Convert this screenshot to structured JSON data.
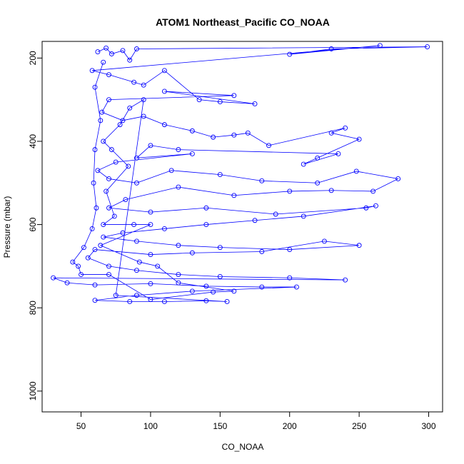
{
  "chart_data": {
    "type": "scatter",
    "title": "ATOM1 Northeast_Pacific CO_NOAA",
    "xlabel": "CO_NOAA",
    "ylabel": "Pressure (mbar)",
    "xlim": [
      22,
      310
    ],
    "ylim": [
      1050,
      160
    ],
    "y_reversed": true,
    "x_ticks": [
      50,
      100,
      150,
      200,
      250,
      300
    ],
    "y_ticks": [
      200,
      400,
      600,
      800,
      1000
    ],
    "grid": false,
    "legend": "none",
    "point_style": "open-circle-connected-by-lines",
    "series_color": "#0000ff",
    "points": [
      [
        62,
        185
      ],
      [
        68,
        176
      ],
      [
        72,
        190
      ],
      [
        80,
        182
      ],
      [
        85,
        205
      ],
      [
        90,
        178
      ],
      [
        299,
        173
      ],
      [
        230,
        178
      ],
      [
        200,
        191
      ],
      [
        265,
        170
      ],
      [
        58,
        230
      ],
      [
        70,
        240
      ],
      [
        88,
        258
      ],
      [
        95,
        265
      ],
      [
        110,
        230
      ],
      [
        135,
        300
      ],
      [
        150,
        305
      ],
      [
        175,
        310
      ],
      [
        110,
        280
      ],
      [
        160,
        290
      ],
      [
        70,
        300
      ],
      [
        65,
        330
      ],
      [
        80,
        350
      ],
      [
        95,
        340
      ],
      [
        110,
        360
      ],
      [
        130,
        375
      ],
      [
        145,
        390
      ],
      [
        160,
        385
      ],
      [
        170,
        380
      ],
      [
        185,
        410
      ],
      [
        240,
        368
      ],
      [
        230,
        380
      ],
      [
        250,
        395
      ],
      [
        220,
        440
      ],
      [
        210,
        455
      ],
      [
        235,
        430
      ],
      [
        120,
        420
      ],
      [
        100,
        410
      ],
      [
        90,
        440
      ],
      [
        130,
        430
      ],
      [
        75,
        450
      ],
      [
        62,
        470
      ],
      [
        70,
        490
      ],
      [
        90,
        500
      ],
      [
        115,
        470
      ],
      [
        150,
        480
      ],
      [
        180,
        495
      ],
      [
        220,
        500
      ],
      [
        248,
        472
      ],
      [
        278,
        490
      ],
      [
        260,
        520
      ],
      [
        230,
        518
      ],
      [
        200,
        520
      ],
      [
        160,
        530
      ],
      [
        120,
        510
      ],
      [
        82,
        540
      ],
      [
        70,
        560
      ],
      [
        100,
        570
      ],
      [
        140,
        560
      ],
      [
        190,
        575
      ],
      [
        255,
        560
      ],
      [
        262,
        555
      ],
      [
        210,
        580
      ],
      [
        175,
        590
      ],
      [
        140,
        600
      ],
      [
        110,
        610
      ],
      [
        80,
        620
      ],
      [
        66,
        630
      ],
      [
        90,
        640
      ],
      [
        120,
        650
      ],
      [
        150,
        655
      ],
      [
        200,
        660
      ],
      [
        250,
        650
      ],
      [
        225,
        640
      ],
      [
        180,
        665
      ],
      [
        130,
        668
      ],
      [
        100,
        672
      ],
      [
        60,
        660
      ],
      [
        55,
        680
      ],
      [
        70,
        700
      ],
      [
        90,
        710
      ],
      [
        120,
        720
      ],
      [
        150,
        725
      ],
      [
        200,
        728
      ],
      [
        240,
        733
      ],
      [
        30,
        728
      ],
      [
        40,
        740
      ],
      [
        60,
        745
      ],
      [
        100,
        742
      ],
      [
        140,
        748
      ],
      [
        180,
        750
      ],
      [
        205,
        750
      ],
      [
        130,
        760
      ],
      [
        90,
        770
      ],
      [
        60,
        782
      ],
      [
        85,
        785
      ],
      [
        110,
        785
      ],
      [
        140,
        783
      ],
      [
        155,
        785
      ],
      [
        75,
        770
      ],
      [
        95,
        300
      ],
      [
        85,
        320
      ],
      [
        78,
        360
      ],
      [
        66,
        400
      ],
      [
        72,
        420
      ],
      [
        84,
        460
      ],
      [
        68,
        520
      ],
      [
        74,
        580
      ],
      [
        66,
        600
      ],
      [
        88,
        600
      ],
      [
        100,
        600
      ],
      [
        64,
        650
      ],
      [
        92,
        690
      ],
      [
        105,
        700
      ],
      [
        120,
        740
      ],
      [
        160,
        760
      ],
      [
        145,
        762
      ],
      [
        100,
        780
      ],
      [
        70,
        720
      ],
      [
        50,
        720
      ],
      [
        48,
        700
      ],
      [
        44,
        690
      ],
      [
        52,
        655
      ],
      [
        58,
        610
      ],
      [
        61,
        560
      ],
      [
        59,
        500
      ],
      [
        60,
        420
      ],
      [
        64,
        350
      ],
      [
        60,
        270
      ],
      [
        66,
        210
      ]
    ]
  }
}
